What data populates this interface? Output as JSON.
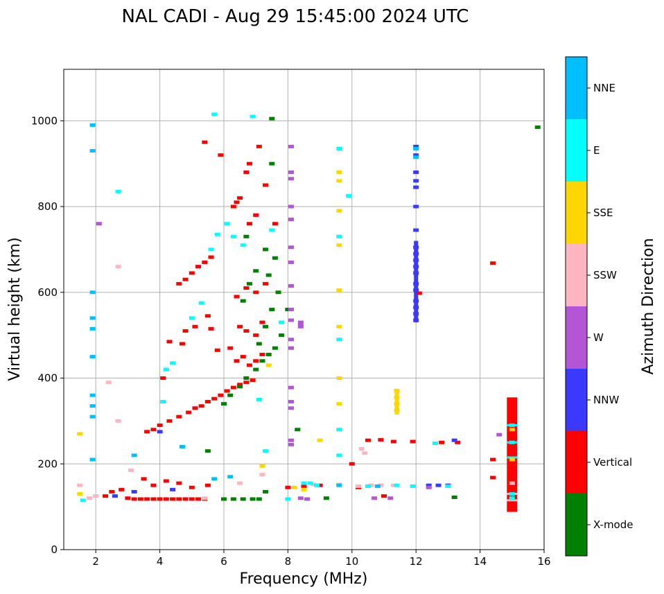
{
  "chart_data": {
    "type": "scatter",
    "title": "NAL CADI - Aug 29 15:45:00 2024 UTC",
    "xlabel": "Frequency (MHz)",
    "ylabel": "Virtual height (km)",
    "xlim": [
      1,
      16
    ],
    "ylim": [
      0,
      1120
    ],
    "xticks": [
      2,
      4,
      6,
      8,
      10,
      12,
      14,
      16
    ],
    "yticks": [
      0,
      200,
      400,
      600,
      800,
      1000
    ],
    "grid": true,
    "colorbar": {
      "title": "Azimuth Direction",
      "categories": [
        {
          "name": "X-mode",
          "color": "#008000"
        },
        {
          "name": "Vertical",
          "color": "#ff0000"
        },
        {
          "name": "NNW",
          "color": "#3a3aff"
        },
        {
          "name": "W",
          "color": "#b455d6"
        },
        {
          "name": "SSW",
          "color": "#ffb6c1"
        },
        {
          "name": "SSE",
          "color": "#ffd700"
        },
        {
          "name": "E",
          "color": "#00ffff"
        },
        {
          "name": "NNE",
          "color": "#00bfff"
        }
      ]
    },
    "series": [
      {
        "name": "Vertical",
        "points": [
          [
            2.3,
            125
          ],
          [
            2.5,
            135
          ],
          [
            2.8,
            140
          ],
          [
            3.0,
            120
          ],
          [
            3.2,
            118
          ],
          [
            3.4,
            118
          ],
          [
            3.6,
            118
          ],
          [
            3.8,
            118
          ],
          [
            4.0,
            118
          ],
          [
            4.2,
            118
          ],
          [
            4.4,
            118
          ],
          [
            4.6,
            118
          ],
          [
            4.8,
            118
          ],
          [
            5.0,
            118
          ],
          [
            5.2,
            118
          ],
          [
            5.4,
            118
          ],
          [
            3.5,
            165
          ],
          [
            3.8,
            150
          ],
          [
            4.2,
            160
          ],
          [
            4.6,
            155
          ],
          [
            5.0,
            145
          ],
          [
            5.5,
            150
          ],
          [
            3.6,
            275
          ],
          [
            3.8,
            280
          ],
          [
            4.0,
            290
          ],
          [
            4.3,
            300
          ],
          [
            4.6,
            310
          ],
          [
            4.9,
            320
          ],
          [
            5.1,
            330
          ],
          [
            5.3,
            335
          ],
          [
            5.5,
            345
          ],
          [
            5.7,
            352
          ],
          [
            5.9,
            360
          ],
          [
            6.1,
            370
          ],
          [
            6.3,
            378
          ],
          [
            6.5,
            385
          ],
          [
            6.7,
            390
          ],
          [
            6.9,
            395
          ],
          [
            4.1,
            400
          ],
          [
            4.3,
            485
          ],
          [
            4.7,
            480
          ],
          [
            4.8,
            510
          ],
          [
            5.1,
            520
          ],
          [
            5.5,
            545
          ],
          [
            5.6,
            515
          ],
          [
            5.8,
            465
          ],
          [
            6.2,
            470
          ],
          [
            6.4,
            440
          ],
          [
            6.6,
            450
          ],
          [
            6.8,
            430
          ],
          [
            7.0,
            440
          ],
          [
            7.2,
            455
          ],
          [
            6.5,
            520
          ],
          [
            6.7,
            510
          ],
          [
            7.0,
            500
          ],
          [
            7.2,
            530
          ],
          [
            4.6,
            620
          ],
          [
            4.8,
            630
          ],
          [
            5.0,
            645
          ],
          [
            5.2,
            660
          ],
          [
            5.4,
            670
          ],
          [
            5.6,
            682
          ],
          [
            6.4,
            590
          ],
          [
            6.7,
            610
          ],
          [
            7.0,
            600
          ],
          [
            7.3,
            620
          ],
          [
            6.3,
            800
          ],
          [
            6.4,
            810
          ],
          [
            6.5,
            820
          ],
          [
            6.7,
            880
          ],
          [
            6.8,
            900
          ],
          [
            7.1,
            940
          ],
          [
            7.3,
            850
          ],
          [
            7.0,
            780
          ],
          [
            6.8,
            760
          ],
          [
            5.4,
            950
          ],
          [
            5.9,
            920
          ],
          [
            7.6,
            760
          ],
          [
            8.0,
            145
          ],
          [
            8.5,
            148
          ],
          [
            9.0,
            150
          ],
          [
            10.2,
            145
          ],
          [
            10.5,
            255
          ],
          [
            10.9,
            256
          ],
          [
            11.3,
            252
          ],
          [
            11.9,
            252
          ],
          [
            12.8,
            250
          ],
          [
            13.3,
            250
          ],
          [
            10.0,
            200
          ],
          [
            11.0,
            125
          ],
          [
            12.1,
            598
          ],
          [
            14.4,
            668
          ],
          [
            14.4,
            210
          ],
          [
            14.4,
            168
          ]
        ]
      },
      {
        "name": "X-mode",
        "points": [
          [
            6.0,
            118
          ],
          [
            6.3,
            118
          ],
          [
            6.6,
            118
          ],
          [
            6.9,
            118
          ],
          [
            7.1,
            118
          ],
          [
            7.3,
            135
          ],
          [
            6.0,
            340
          ],
          [
            6.2,
            360
          ],
          [
            6.5,
            380
          ],
          [
            6.7,
            400
          ],
          [
            7.0,
            420
          ],
          [
            7.2,
            440
          ],
          [
            7.4,
            455
          ],
          [
            7.6,
            470
          ],
          [
            7.8,
            500
          ],
          [
            8.0,
            560
          ],
          [
            7.1,
            480
          ],
          [
            7.3,
            520
          ],
          [
            7.5,
            560
          ],
          [
            7.7,
            600
          ],
          [
            7.4,
            640
          ],
          [
            7.6,
            680
          ],
          [
            6.8,
            620
          ],
          [
            6.6,
            580
          ],
          [
            7.0,
            650
          ],
          [
            7.3,
            700
          ],
          [
            6.7,
            730
          ],
          [
            7.5,
            900
          ],
          [
            7.5,
            1005
          ],
          [
            15.8,
            985
          ],
          [
            8.3,
            280
          ],
          [
            9.2,
            120
          ],
          [
            13.2,
            122
          ],
          [
            5.5,
            230
          ]
        ]
      },
      {
        "name": "NNW",
        "points": [
          [
            12.0,
            940
          ],
          [
            12.0,
            920
          ],
          [
            12.0,
            880
          ],
          [
            12.0,
            860
          ],
          [
            12.0,
            845
          ],
          [
            12.0,
            800
          ],
          [
            12.0,
            745
          ],
          [
            12.0,
            705
          ],
          [
            12.0,
            690
          ],
          [
            12.0,
            675
          ],
          [
            12.0,
            660
          ],
          [
            12.0,
            645
          ],
          [
            12.0,
            620
          ],
          [
            12.0,
            605
          ],
          [
            12.0,
            580
          ],
          [
            12.0,
            565
          ],
          [
            12.0,
            550
          ],
          [
            12.0,
            535
          ],
          [
            12.4,
            150
          ],
          [
            12.7,
            150
          ],
          [
            13.0,
            150
          ],
          [
            13.2,
            255
          ],
          [
            2.6,
            125
          ],
          [
            3.2,
            135
          ],
          [
            4.4,
            140
          ],
          [
            4.0,
            275
          ]
        ]
      },
      {
        "name": "W",
        "points": [
          [
            8.1,
            940
          ],
          [
            8.1,
            880
          ],
          [
            8.1,
            865
          ],
          [
            8.1,
            800
          ],
          [
            8.1,
            770
          ],
          [
            8.1,
            705
          ],
          [
            8.1,
            670
          ],
          [
            8.1,
            615
          ],
          [
            8.1,
            560
          ],
          [
            8.1,
            535
          ],
          [
            8.1,
            490
          ],
          [
            8.1,
            470
          ],
          [
            8.1,
            378
          ],
          [
            8.1,
            345
          ],
          [
            8.1,
            330
          ],
          [
            8.1,
            255
          ],
          [
            8.1,
            245
          ],
          [
            8.4,
            530
          ],
          [
            8.4,
            525
          ],
          [
            8.4,
            520
          ],
          [
            8.4,
            120
          ],
          [
            8.6,
            118
          ],
          [
            10.7,
            120
          ],
          [
            11.2,
            120
          ],
          [
            12.4,
            145
          ],
          [
            2.1,
            760
          ],
          [
            14.6,
            268
          ]
        ]
      },
      {
        "name": "SSW",
        "points": [
          [
            1.5,
            150
          ],
          [
            1.8,
            120
          ],
          [
            2.0,
            125
          ],
          [
            2.4,
            390
          ],
          [
            2.7,
            660
          ],
          [
            2.7,
            300
          ],
          [
            3.1,
            185
          ],
          [
            5.4,
            120
          ],
          [
            6.5,
            155
          ],
          [
            7.2,
            175
          ],
          [
            8.8,
            152
          ],
          [
            9.6,
            152
          ],
          [
            10.2,
            148
          ],
          [
            10.6,
            150
          ],
          [
            10.9,
            150
          ],
          [
            11.3,
            150
          ],
          [
            10.3,
            235
          ],
          [
            10.4,
            225
          ],
          [
            15.0,
            155
          ]
        ]
      },
      {
        "name": "SSE",
        "points": [
          [
            1.5,
            270
          ],
          [
            1.5,
            130
          ],
          [
            7.2,
            195
          ],
          [
            7.4,
            430
          ],
          [
            8.2,
            145
          ],
          [
            8.5,
            140
          ],
          [
            9.0,
            255
          ],
          [
            9.6,
            400
          ],
          [
            9.6,
            340
          ],
          [
            9.6,
            520
          ],
          [
            9.6,
            605
          ],
          [
            9.6,
            710
          ],
          [
            9.6,
            790
          ],
          [
            9.6,
            860
          ],
          [
            9.6,
            880
          ],
          [
            11.4,
            370
          ],
          [
            11.4,
            355
          ],
          [
            11.4,
            340
          ],
          [
            11.4,
            325
          ],
          [
            15.0,
            210
          ],
          [
            15.0,
            280
          ]
        ]
      },
      {
        "name": "E",
        "points": [
          [
            1.6,
            115
          ],
          [
            2.7,
            835
          ],
          [
            4.1,
            345
          ],
          [
            4.4,
            435
          ],
          [
            5.0,
            540
          ],
          [
            5.3,
            575
          ],
          [
            5.6,
            700
          ],
          [
            5.8,
            735
          ],
          [
            6.1,
            760
          ],
          [
            6.3,
            730
          ],
          [
            6.6,
            710
          ],
          [
            7.1,
            350
          ],
          [
            7.3,
            230
          ],
          [
            7.5,
            745
          ],
          [
            7.8,
            530
          ],
          [
            8.0,
            118
          ],
          [
            8.5,
            155
          ],
          [
            8.7,
            155
          ],
          [
            8.9,
            150
          ],
          [
            9.6,
            935
          ],
          [
            9.6,
            730
          ],
          [
            9.6,
            490
          ],
          [
            9.6,
            280
          ],
          [
            9.6,
            220
          ],
          [
            9.9,
            825
          ],
          [
            10.5,
            148
          ],
          [
            11.4,
            150
          ],
          [
            11.9,
            148
          ],
          [
            12.6,
            248
          ],
          [
            13.0,
            148
          ],
          [
            15.0,
            290
          ],
          [
            15.0,
            250
          ],
          [
            15.0,
            130
          ],
          [
            15.0,
            120
          ],
          [
            6.9,
            1010
          ],
          [
            5.7,
            1015
          ],
          [
            4.2,
            420
          ]
        ]
      },
      {
        "name": "NNE",
        "points": [
          [
            1.9,
            990
          ],
          [
            1.9,
            930
          ],
          [
            1.9,
            600
          ],
          [
            1.9,
            540
          ],
          [
            1.9,
            515
          ],
          [
            1.9,
            450
          ],
          [
            1.9,
            360
          ],
          [
            1.9,
            335
          ],
          [
            1.9,
            310
          ],
          [
            1.9,
            210
          ],
          [
            12.0,
            935
          ],
          [
            12.0,
            915
          ],
          [
            3.2,
            220
          ],
          [
            4.7,
            240
          ],
          [
            5.7,
            165
          ],
          [
            6.2,
            170
          ],
          [
            9.6,
            150
          ],
          [
            10.8,
            148
          ]
        ]
      }
    ],
    "bands": [
      {
        "name": "Vertical",
        "x": 15.0,
        "y_range": [
          88,
          355
        ]
      },
      {
        "name": "SSE",
        "x": 11.4,
        "y_range": [
          315,
          375
        ]
      },
      {
        "name": "NNW",
        "x": 12.0,
        "y_range": [
          530,
          720
        ]
      }
    ]
  }
}
